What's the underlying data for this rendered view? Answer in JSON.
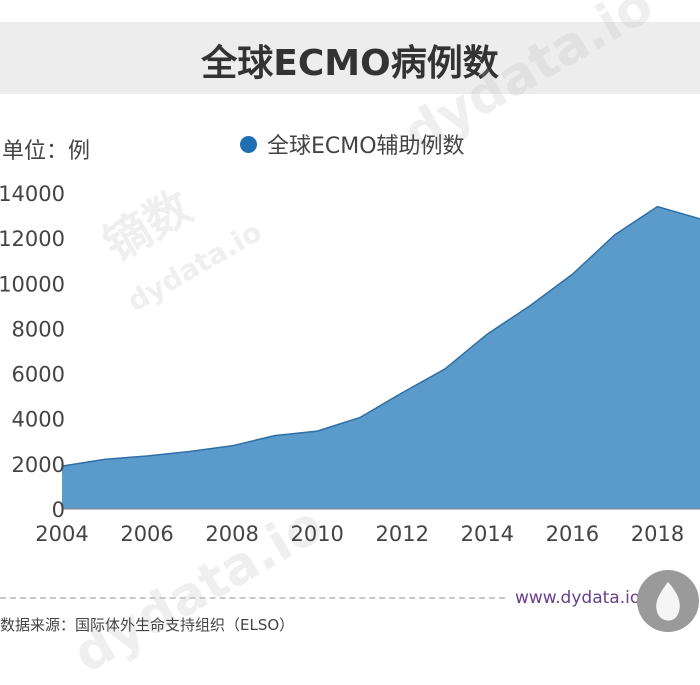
{
  "header": {
    "title": "全球ECMO病例数"
  },
  "unit_label": "单位：例",
  "footer": {
    "website": "www.dydata.io",
    "source": "数据来源：国际体外生命支持组织（ELSO）"
  },
  "watermark": {
    "brand": "镝数",
    "url": "dydata.io"
  },
  "colors": {
    "area": "#5b9bcb",
    "line": "#2e6fa6",
    "legend_dot": "#1f6fb2"
  },
  "chart_data": {
    "type": "area",
    "legend": "全球ECMO辅助例数",
    "x": [
      2004,
      2005,
      2006,
      2007,
      2008,
      2009,
      2010,
      2011,
      2012,
      2013,
      2014,
      2015,
      2016,
      2017,
      2018,
      2019
    ],
    "values": [
      1900,
      2200,
      2350,
      2550,
      2800,
      3250,
      3450,
      4050,
      5150,
      6200,
      7750,
      9000,
      10400,
      12150,
      13400,
      12850
    ],
    "xlim": [
      2004,
      2019
    ],
    "ylim": [
      0,
      14000
    ],
    "x_ticks": [
      "2004",
      "2006",
      "2008",
      "2010",
      "2012",
      "2014",
      "2016",
      "2018"
    ],
    "y_ticks": [
      "0",
      "2000",
      "4000",
      "6000",
      "8000",
      "10000",
      "12000",
      "14000"
    ],
    "grid": false
  }
}
